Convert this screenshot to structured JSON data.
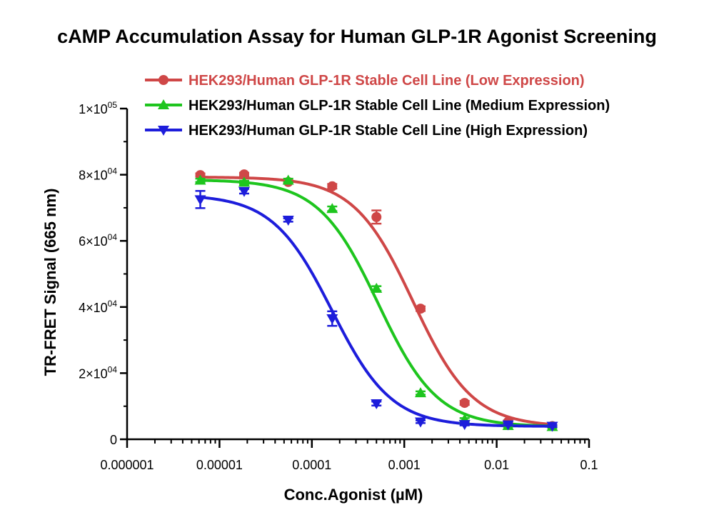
{
  "chart_data": {
    "type": "line",
    "title": "cAMP Accumulation Assay for Human GLP-1R Agonist Screening",
    "xlabel": "Conc.Agonist (µM)",
    "ylabel": "TR-FRET Signal (665 nm)",
    "x_scale": "log",
    "xlim": [
      1e-06,
      0.1
    ],
    "ylim": [
      0,
      100000
    ],
    "legend_position": "top",
    "grid": false,
    "x_ticks": [
      {
        "value": 1e-06,
        "label": "0.000001"
      },
      {
        "value": 1e-05,
        "label": "0.00001"
      },
      {
        "value": 0.0001,
        "label": "0.0001"
      },
      {
        "value": 0.001,
        "label": "0.001"
      },
      {
        "value": 0.01,
        "label": "0.01"
      },
      {
        "value": 0.1,
        "label": "0.1"
      }
    ],
    "y_ticks": [
      {
        "value": 0,
        "mantissa": "0",
        "exponent": ""
      },
      {
        "value": 20000,
        "mantissa": "2×10",
        "exponent": "04"
      },
      {
        "value": 40000,
        "mantissa": "4×10",
        "exponent": "04"
      },
      {
        "value": 60000,
        "mantissa": "6×10",
        "exponent": "04"
      },
      {
        "value": 80000,
        "mantissa": "8×10",
        "exponent": "04"
      },
      {
        "value": 100000,
        "mantissa": "1×10",
        "exponent": "05"
      }
    ],
    "x": [
      6.2e-06,
      1.85e-05,
      5.55e-05,
      0.000166,
      0.0005,
      0.0015,
      0.0045,
      0.0133,
      0.04
    ],
    "series": [
      {
        "name": "HEK293/Human GLP-1R Stable Cell Line (Low Expression)",
        "color": "#cf4747",
        "marker": "circle",
        "values": [
          79900,
          80100,
          77800,
          76500,
          67200,
          39500,
          11000,
          5300,
          4000
        ],
        "errors": [
          500,
          500,
          500,
          700,
          2000,
          700,
          600,
          400,
          300
        ],
        "fit": {
          "top": 79300,
          "bottom": 3800,
          "ec50": 0.00125,
          "hill": 1.35
        }
      },
      {
        "name": "HEK293/Human GLP-1R Stable Cell Line (Medium Expression)",
        "color": "#1ec51e",
        "marker": "triangle-up",
        "values": [
          78300,
          77700,
          78300,
          69700,
          45600,
          14000,
          6000,
          4100,
          3800
        ],
        "errors": [
          500,
          500,
          500,
          700,
          700,
          500,
          400,
          300,
          300
        ],
        "fit": {
          "top": 78500,
          "bottom": 3800,
          "ec50": 0.00052,
          "hill": 1.35
        }
      },
      {
        "name": "HEK293/Human GLP-1R Stable Cell Line (High Expression)",
        "color": "#1d1ddb",
        "marker": "triangle-down",
        "values": [
          72500,
          75000,
          66300,
          36500,
          10800,
          5300,
          4500,
          4400,
          4000
        ],
        "errors": [
          2600,
          700,
          500,
          2200,
          600,
          400,
          300,
          300,
          300
        ],
        "fit": {
          "top": 74000,
          "bottom": 3900,
          "ec50": 0.000165,
          "hill": 1.35
        }
      }
    ]
  }
}
